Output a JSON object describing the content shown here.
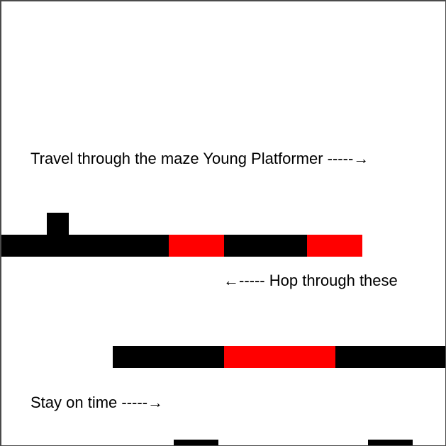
{
  "hints": {
    "intro": "Travel through the maze Young Platformer -----→",
    "hop": "←----- Hop through these",
    "time": "Stay on time -----→"
  },
  "colors": {
    "solid": "#000000",
    "hazard": "#ff0000",
    "background": "#ffffff"
  },
  "platforms": [
    {
      "name": "row-1-solid-a",
      "kind": "solid"
    },
    {
      "name": "row-1-hazard-a",
      "kind": "hazard"
    },
    {
      "name": "row-1-solid-b",
      "kind": "solid"
    },
    {
      "name": "row-1-hazard-b",
      "kind": "hazard"
    },
    {
      "name": "row-2-solid-a",
      "kind": "solid"
    },
    {
      "name": "row-2-hazard-a",
      "kind": "hazard"
    },
    {
      "name": "row-2-solid-b",
      "kind": "solid"
    },
    {
      "name": "row-3-solid-a",
      "kind": "solid"
    },
    {
      "name": "row-3-solid-b",
      "kind": "solid"
    }
  ]
}
